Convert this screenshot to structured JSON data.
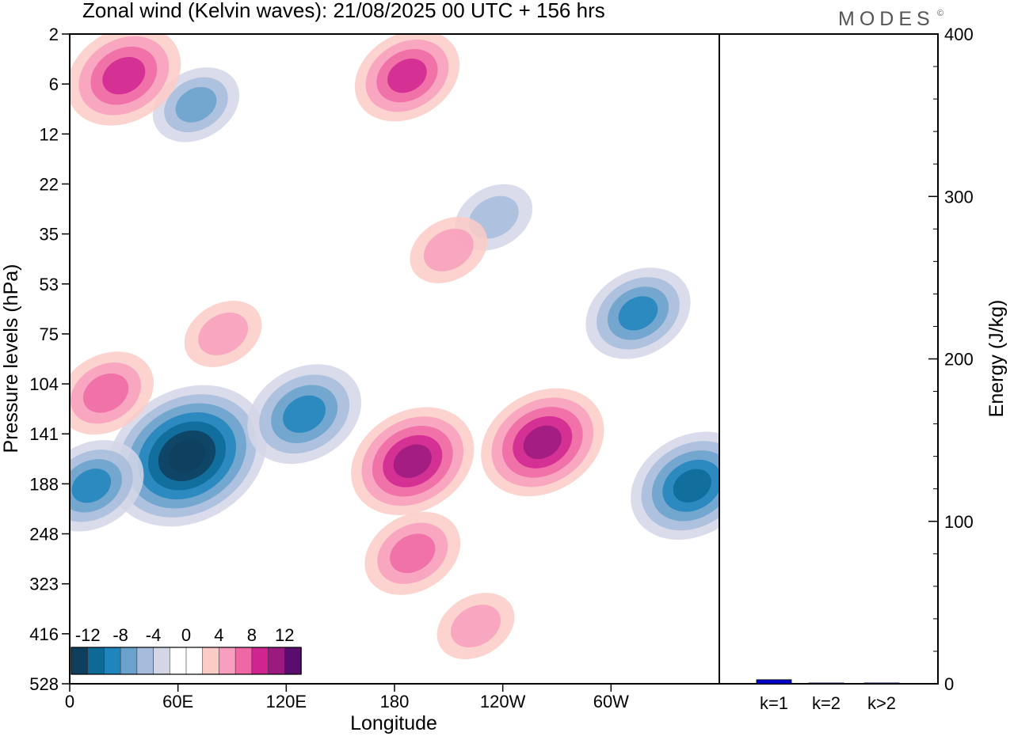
{
  "chart_data": [
    {
      "type": "heatmap",
      "title": "Zonal wind (Kelvin waves):  21/08/2025  00 UTC  + 156 hrs",
      "xlabel": "Longitude",
      "ylabel": "Pressure levels (hPa)",
      "x_ticks": [
        "0",
        "60E",
        "120E",
        "180",
        "120W",
        "60W"
      ],
      "y_ticks": [
        "2",
        "6",
        "12",
        "22",
        "35",
        "53",
        "75",
        "104",
        "141",
        "188",
        "248",
        "323",
        "416",
        "528"
      ],
      "colorbar": {
        "labels": [
          "-12",
          "-8",
          "-4",
          "0",
          "4",
          "8",
          "12"
        ],
        "levels": [
          -14,
          -12,
          -10,
          -8,
          -6,
          -4,
          -2,
          0,
          2,
          4,
          6,
          8,
          10,
          12,
          14
        ],
        "colors": [
          "#0f3f5e",
          "#0e6996",
          "#2185bd",
          "#69a2cc",
          "#a6bcdc",
          "#d3d6e7",
          "#ffffff",
          "#ffffff",
          "#fbcbc6",
          "#f89ebe",
          "#f067a5",
          "#d02590",
          "#9a1a80",
          "#5a0d6e"
        ]
      },
      "features": [
        {
          "lon": 65,
          "level": 160,
          "value": -13
        },
        {
          "lon": 12,
          "level": 190,
          "value": -7
        },
        {
          "lon": 130,
          "level": 125,
          "value": -8
        },
        {
          "lon": 345,
          "level": 190,
          "value": -9
        },
        {
          "lon": 315,
          "level": 65,
          "value": -7
        },
        {
          "lon": 235,
          "level": 30,
          "value": -4
        },
        {
          "lon": 70,
          "level": 8,
          "value": -5
        },
        {
          "lon": 190,
          "level": 165,
          "value": 9
        },
        {
          "lon": 262,
          "level": 148,
          "value": 9
        },
        {
          "lon": 190,
          "level": 275,
          "value": 6
        },
        {
          "lon": 225,
          "level": 400,
          "value": 4
        },
        {
          "lon": 85,
          "level": 75,
          "value": 4
        },
        {
          "lon": 20,
          "level": 110,
          "value": 6
        },
        {
          "lon": 187,
          "level": 5,
          "value": 7
        },
        {
          "lon": 30,
          "level": 5,
          "value": 8
        },
        {
          "lon": 210,
          "level": 40,
          "value": 4
        }
      ]
    },
    {
      "type": "bar",
      "title": "",
      "ylabel": "Energy (J/kg)",
      "categories": [
        "k=1",
        "k=2",
        "k>2"
      ],
      "values": [
        2.5,
        0,
        0.5
      ],
      "ylim": [
        0,
        400
      ],
      "y_ticks": [
        0,
        100,
        200,
        300,
        400
      ],
      "bar_color": "#0000cc"
    }
  ],
  "logo": "MODES",
  "logo_mark": "©"
}
